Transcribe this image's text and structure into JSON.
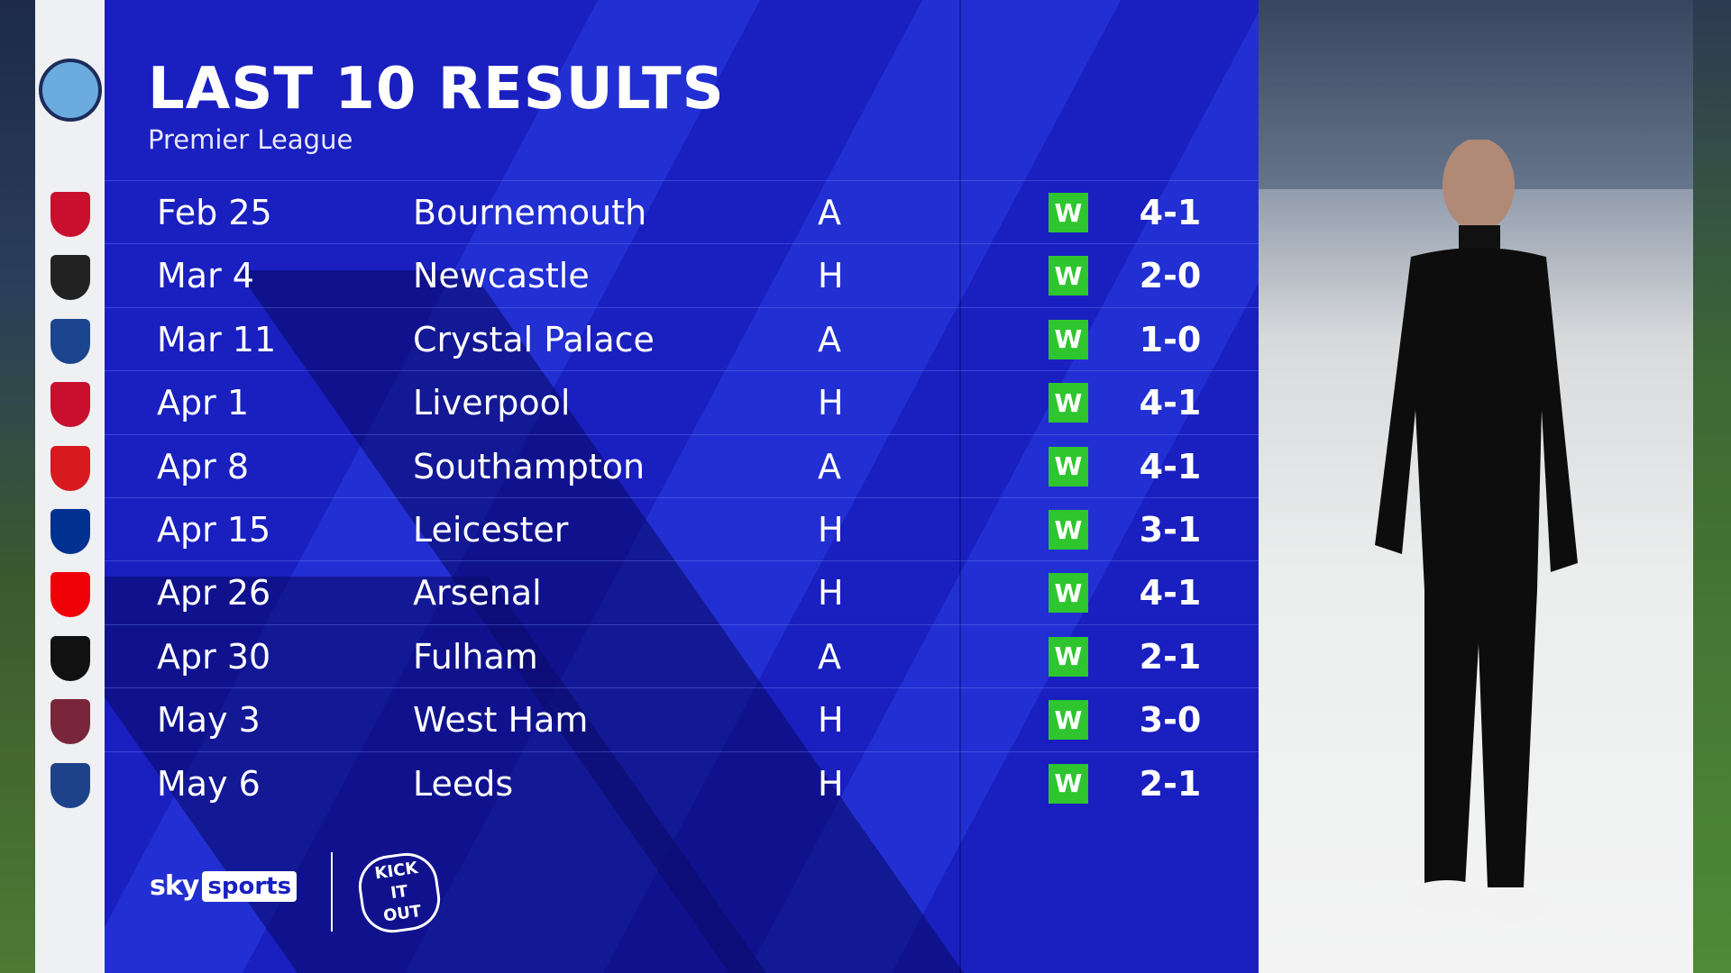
{
  "header": {
    "title": "LAST 10 RESULTS",
    "subtitle": "Premier League"
  },
  "team_crest": "manchester-city-crest",
  "results": [
    {
      "date": "Feb 25",
      "opponent": "Bournemouth",
      "venue": "A",
      "result": "W",
      "score": "4-1",
      "crest_color": "#c8102e"
    },
    {
      "date": "Mar 4",
      "opponent": "Newcastle",
      "venue": "H",
      "result": "W",
      "score": "2-0",
      "crest_color": "#222222"
    },
    {
      "date": "Mar 11",
      "opponent": "Crystal Palace",
      "venue": "A",
      "result": "W",
      "score": "1-0",
      "crest_color": "#1b458f"
    },
    {
      "date": "Apr 1",
      "opponent": "Liverpool",
      "venue": "H",
      "result": "W",
      "score": "4-1",
      "crest_color": "#c8102e"
    },
    {
      "date": "Apr 8",
      "opponent": "Southampton",
      "venue": "A",
      "result": "W",
      "score": "4-1",
      "crest_color": "#d71920"
    },
    {
      "date": "Apr 15",
      "opponent": "Leicester",
      "venue": "H",
      "result": "W",
      "score": "3-1",
      "crest_color": "#003090"
    },
    {
      "date": "Apr 26",
      "opponent": "Arsenal",
      "venue": "H",
      "result": "W",
      "score": "4-1",
      "crest_color": "#ef0107"
    },
    {
      "date": "Apr 30",
      "opponent": "Fulham",
      "venue": "A",
      "result": "W",
      "score": "2-1",
      "crest_color": "#111111"
    },
    {
      "date": "May 3",
      "opponent": "West Ham",
      "venue": "H",
      "result": "W",
      "score": "3-0",
      "crest_color": "#7a263a"
    },
    {
      "date": "May 6",
      "opponent": "Leeds",
      "venue": "H",
      "result": "W",
      "score": "2-1",
      "crest_color": "#1d428a"
    }
  ],
  "colors": {
    "panel": "#1a1fc0",
    "win": "#2fc52f"
  },
  "branding": {
    "sky": "sky",
    "sports": "sports",
    "kick_it_out": "KICK IT OUT"
  }
}
